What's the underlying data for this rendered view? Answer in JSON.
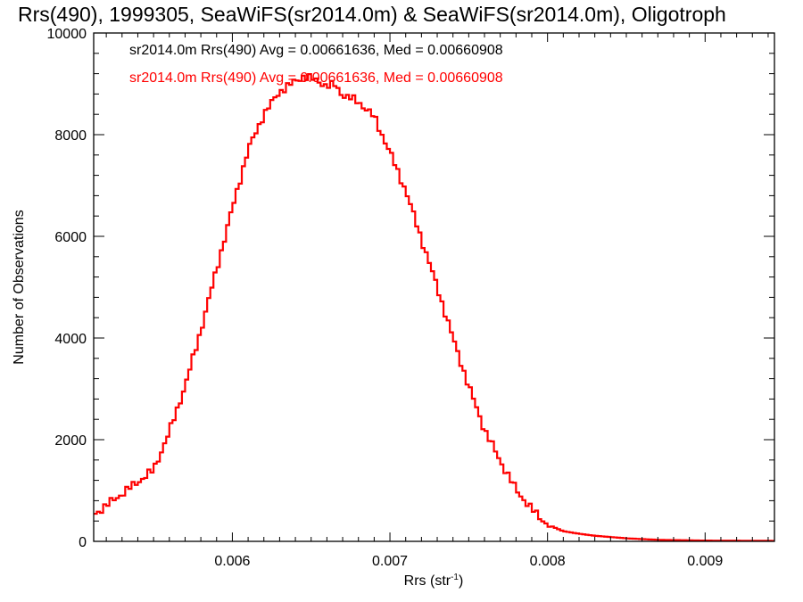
{
  "chart_data": {
    "type": "histogram",
    "title": "Rrs(490), 1999305, SeaWiFS(sr2014.0m) & SeaWiFS(sr2014.0m), Oligotroph",
    "xlabel": "Rrs (str",
    "xlabel_sup": "-1",
    "xlabel_close": ")",
    "ylabel": "Number of Observations",
    "xlim": [
      0.00512,
      0.00944
    ],
    "ylim": [
      0,
      10000
    ],
    "x_ticks": [
      {
        "value": 0.006,
        "label": "0.006"
      },
      {
        "value": 0.007,
        "label": "0.007"
      },
      {
        "value": 0.008,
        "label": "0.008"
      },
      {
        "value": 0.009,
        "label": "0.009"
      }
    ],
    "y_ticks": [
      {
        "value": 0,
        "label": "0"
      },
      {
        "value": 2000,
        "label": "2000"
      },
      {
        "value": 4000,
        "label": "4000"
      },
      {
        "value": 6000,
        "label": "6000"
      },
      {
        "value": 8000,
        "label": "8000"
      },
      {
        "value": 10000,
        "label": "10000"
      }
    ],
    "legend": [
      {
        "text": "sr2014.0m Rrs(490) Avg = 0.00661636, Med = 0.00660908",
        "color": "#000000"
      },
      {
        "text": "sr2014.0m Rrs(490) Avg = 0.00661636, Med = 0.00660908",
        "color": "#ff0000"
      }
    ],
    "series": [
      {
        "color": "#ff0000",
        "x": [
          0.00512,
          0.0055,
          0.0056,
          0.0057,
          0.0058,
          0.0059,
          0.006,
          0.0061,
          0.0062,
          0.0063,
          0.0064,
          0.00645,
          0.0065,
          0.00655,
          0.0066,
          0.00665,
          0.0067,
          0.0068,
          0.0069,
          0.007,
          0.0071,
          0.0072,
          0.0073,
          0.0074,
          0.0075,
          0.0076,
          0.0077,
          0.0078,
          0.0079,
          0.008,
          0.0081,
          0.0082,
          0.0083,
          0.0085,
          0.0087,
          0.009,
          0.00944
        ],
        "y": [
          520,
          1400,
          2150,
          3050,
          4150,
          5350,
          6550,
          7700,
          8400,
          8850,
          9050,
          9150,
          9100,
          9050,
          8950,
          8980,
          8780,
          8650,
          8350,
          7650,
          6900,
          5950,
          5000,
          4000,
          3050,
          2200,
          1580,
          1020,
          630,
          330,
          200,
          150,
          110,
          60,
          30,
          15,
          10
        ]
      }
    ]
  }
}
